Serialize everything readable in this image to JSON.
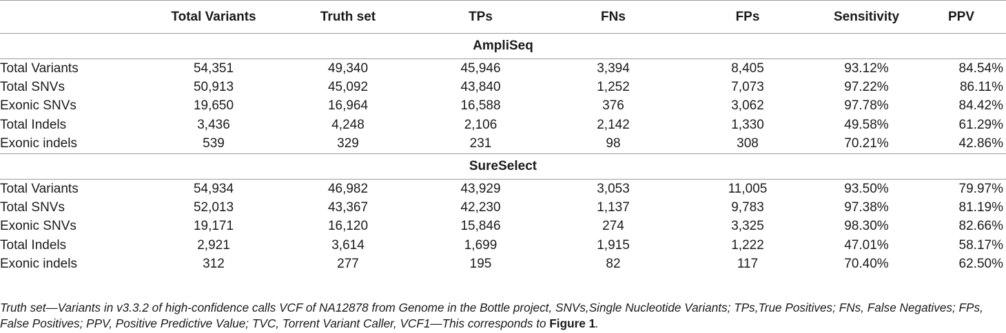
{
  "headers": [
    "",
    "Total Variants",
    "Truth set",
    "TPs",
    "FNs",
    "FPs",
    "Sensitivity",
    "PPV"
  ],
  "sections": [
    {
      "name": "AmpliSeq",
      "rows": [
        [
          "Total Variants",
          "54,351",
          "49,340",
          "45,946",
          "3,394",
          "8,405",
          "93.12%",
          "84.54%"
        ],
        [
          "Total SNVs",
          "50,913",
          "45,092",
          "43,840",
          "1,252",
          "7,073",
          "97.22%",
          "86.11%"
        ],
        [
          "Exonic SNVs",
          "19,650",
          "16,964",
          "16,588",
          "376",
          "3,062",
          "97.78%",
          "84.42%"
        ],
        [
          "Total Indels",
          "3,436",
          "4,248",
          "2,106",
          "2,142",
          "1,330",
          "49.58%",
          "61.29%"
        ],
        [
          "Exonic indels",
          "539",
          "329",
          "231",
          "98",
          "308",
          "70.21%",
          "42.86%"
        ]
      ]
    },
    {
      "name": "SureSelect",
      "rows": [
        [
          "Total Variants",
          "54,934",
          "46,982",
          "43,929",
          "3,053",
          "11,005",
          "93.50%",
          "79.97%"
        ],
        [
          "Total SNVs",
          "52,013",
          "43,367",
          "42,230",
          "1,137",
          "9,783",
          "97.38%",
          "81.19%"
        ],
        [
          "Exonic SNVs",
          "19,171",
          "16,120",
          "15,846",
          "274",
          "3,325",
          "98.30%",
          "82.66%"
        ],
        [
          "Total Indels",
          "2,921",
          "3,614",
          "1,699",
          "1,915",
          "1,222",
          "47.01%",
          "58.17%"
        ],
        [
          "Exonic indels",
          "312",
          "277",
          "195",
          "82",
          "117",
          "70.40%",
          "62.50%"
        ]
      ]
    }
  ],
  "footnote": {
    "text": "Truth set—Variants in v3.3.2 of high-confidence calls VCF of NA12878 from Genome in the Bottle project, SNVs,Single Nucleotide Variants; TPs,True Positives; FNs, False Negatives; FPs, False Positives; PPV, Positive Predictive Value; TVC, Torrent Variant Caller, VCF1—This corresponds to ",
    "figure_ref": "Figure 1",
    "end": "."
  }
}
